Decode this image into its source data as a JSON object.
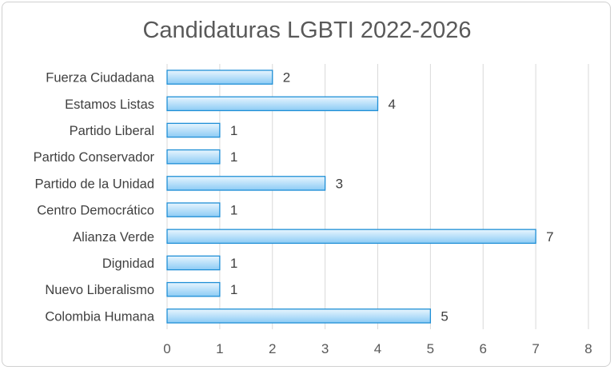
{
  "chart_data": {
    "type": "bar",
    "orientation": "horizontal",
    "title": "Candidaturas LGBTI 2022-2026",
    "categories": [
      "Fuerza Ciudadana",
      "Estamos Listas",
      "Partido Liberal",
      "Partido Conservador",
      "Partido de la Unidad",
      "Centro Democrático",
      "Alianza Verde",
      "Dignidad",
      "Nuevo Liberalismo",
      "Colombia Humana"
    ],
    "values": [
      2,
      4,
      1,
      1,
      3,
      1,
      7,
      1,
      1,
      5
    ],
    "xlim": [
      0,
      8
    ],
    "xticks": [
      0,
      1,
      2,
      3,
      4,
      5,
      6,
      7,
      8
    ],
    "grid": true,
    "data_labels": true,
    "bar_color": "#9fd3f7",
    "bar_edge_color": "#1f8fd6"
  }
}
